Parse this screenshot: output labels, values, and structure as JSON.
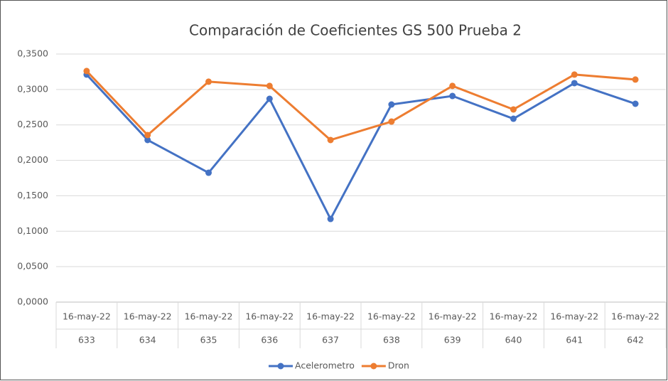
{
  "chart_data": {
    "type": "line",
    "title": "Comparación de Coeficientes GS 500 Prueba 2",
    "categories": [
      [
        "16-may-22",
        "633"
      ],
      [
        "16-may-22",
        "634"
      ],
      [
        "16-may-22",
        "635"
      ],
      [
        "16-may-22",
        "636"
      ],
      [
        "16-may-22",
        "637"
      ],
      [
        "16-may-22",
        "638"
      ],
      [
        "16-may-22",
        "639"
      ],
      [
        "16-may-22",
        "640"
      ],
      [
        "16-may-22",
        "641"
      ],
      [
        "16-may-22",
        "642"
      ]
    ],
    "series": [
      {
        "name": "Acelerometro",
        "color": "#4472c4",
        "values": [
          0.321,
          0.2287,
          0.1825,
          0.2868,
          0.1173,
          0.2788,
          0.2908,
          0.2587,
          0.3089,
          0.2798
        ]
      },
      {
        "name": "Dron",
        "color": "#ed7d31",
        "values": [
          0.326,
          0.2357,
          0.311,
          0.305,
          0.2287,
          0.2547,
          0.305,
          0.2718,
          0.321,
          0.314
        ]
      }
    ],
    "ylim": [
      0,
      0.35
    ],
    "yticks": [
      {
        "value": 0,
        "label": "0,0000"
      },
      {
        "value": 0.05,
        "label": "0,0500"
      },
      {
        "value": 0.1,
        "label": "0,1000"
      },
      {
        "value": 0.15,
        "label": "0,1500"
      },
      {
        "value": 0.2,
        "label": "0,2000"
      },
      {
        "value": 0.25,
        "label": "0,2500"
      },
      {
        "value": 0.3,
        "label": "0,3000"
      },
      {
        "value": 0.35,
        "label": "0,3500"
      }
    ],
    "grid": true,
    "legend": "bottom"
  }
}
